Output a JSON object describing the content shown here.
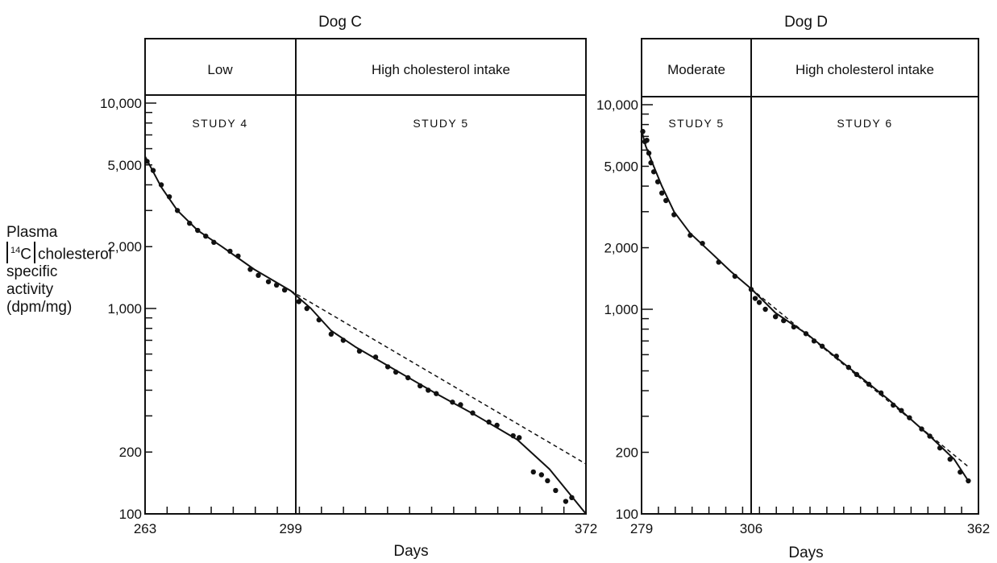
{
  "y_axis_label": {
    "line1": "Plasma",
    "iso_mass": "14",
    "iso_elem": "C",
    "line2_rest": "cholesterol",
    "line3": "specific",
    "line4": "activity",
    "line5": "(dpm/mg)"
  },
  "chart_data": [
    {
      "type": "scatter",
      "title": "Dog C",
      "xlabel": "Days",
      "ylabel": "Plasma [14C] cholesterol specific activity (dpm/mg)",
      "yscale": "log",
      "ylim": [
        100,
        20000
      ],
      "xlim": [
        263,
        372
      ],
      "x_tick_labels": [
        "263",
        "299",
        "372"
      ],
      "y_tick_labels": [
        "100",
        "200",
        "1,000",
        "2,000",
        "5,000",
        "10,000"
      ],
      "y_tick_values": [
        100,
        200,
        1000,
        2000,
        5000,
        10000
      ],
      "x_tick_values": [
        263,
        299,
        372
      ],
      "periods": [
        {
          "label": "Low",
          "study": "STUDY 4",
          "from": 263,
          "to": 299
        },
        {
          "label": "High cholesterol intake",
          "study": "STUDY 5",
          "from": 299,
          "to": 372
        }
      ],
      "points": [
        [
          263.5,
          5200
        ],
        [
          265,
          4700
        ],
        [
          267,
          4000
        ],
        [
          269,
          3500
        ],
        [
          271,
          3000
        ],
        [
          274,
          2600
        ],
        [
          276,
          2400
        ],
        [
          278,
          2250
        ],
        [
          280,
          2100
        ],
        [
          284,
          1900
        ],
        [
          286,
          1800
        ],
        [
          289,
          1550
        ],
        [
          291,
          1450
        ],
        [
          293.5,
          1350
        ],
        [
          295.5,
          1300
        ],
        [
          297.5,
          1230
        ],
        [
          301,
          1080
        ],
        [
          303,
          1000
        ],
        [
          306,
          880
        ],
        [
          309,
          750
        ],
        [
          312,
          700
        ],
        [
          316,
          620
        ],
        [
          320,
          580
        ],
        [
          323,
          520
        ],
        [
          325,
          490
        ],
        [
          328,
          460
        ],
        [
          331,
          420
        ],
        [
          333,
          400
        ],
        [
          335,
          385
        ],
        [
          339,
          350
        ],
        [
          341,
          340
        ],
        [
          344,
          310
        ],
        [
          348,
          280
        ],
        [
          350,
          270
        ],
        [
          354,
          240
        ],
        [
          355.5,
          235
        ],
        [
          359,
          160
        ],
        [
          361,
          155
        ],
        [
          362.5,
          145
        ],
        [
          364.5,
          130
        ],
        [
          367,
          115
        ],
        [
          368.5,
          120
        ]
      ],
      "fitted_curve": [
        [
          263,
          5500
        ],
        [
          267,
          3900
        ],
        [
          271,
          3000
        ],
        [
          276,
          2400
        ],
        [
          282,
          2000
        ],
        [
          290,
          1550
        ],
        [
          299,
          1220
        ],
        [
          304,
          1000
        ],
        [
          309,
          780
        ],
        [
          315,
          650
        ],
        [
          325,
          500
        ],
        [
          335,
          385
        ],
        [
          345,
          300
        ],
        [
          355,
          230
        ],
        [
          363,
          165
        ],
        [
          372,
          100
        ]
      ],
      "extrapolation": [
        [
          299,
          1220
        ],
        [
          372,
          175
        ]
      ]
    },
    {
      "type": "scatter",
      "title": "Dog D",
      "xlabel": "Days",
      "ylabel": "",
      "yscale": "log",
      "ylim": [
        100,
        20000
      ],
      "xlim": [
        279,
        362
      ],
      "x_tick_labels": [
        "279",
        "306",
        "362"
      ],
      "y_tick_labels": [
        "100",
        "200",
        "1,000",
        "2,000",
        "5,000",
        "10,000"
      ],
      "y_tick_values": [
        100,
        200,
        1000,
        2000,
        5000,
        10000
      ],
      "x_tick_values": [
        279,
        306,
        362
      ],
      "periods": [
        {
          "label": "Moderate",
          "study": "STUDY 5",
          "from": 279,
          "to": 306
        },
        {
          "label": "High cholesterol intake",
          "study": "STUDY 6",
          "from": 306,
          "to": 362
        }
      ],
      "points": [
        [
          279.3,
          7400
        ],
        [
          279.8,
          6600
        ],
        [
          280.3,
          6700
        ],
        [
          280.8,
          5800
        ],
        [
          281.3,
          5200
        ],
        [
          282,
          4700
        ],
        [
          283,
          4200
        ],
        [
          284,
          3700
        ],
        [
          285,
          3400
        ],
        [
          287,
          2900
        ],
        [
          291,
          2300
        ],
        [
          294,
          2100
        ],
        [
          298,
          1700
        ],
        [
          302,
          1450
        ],
        [
          306,
          1250
        ],
        [
          307,
          1130
        ],
        [
          308,
          1080
        ],
        [
          309.5,
          1000
        ],
        [
          312,
          920
        ],
        [
          314,
          880
        ],
        [
          316.5,
          820
        ],
        [
          319.5,
          760
        ],
        [
          321.5,
          700
        ],
        [
          323.5,
          660
        ],
        [
          327,
          590
        ],
        [
          330,
          520
        ],
        [
          332,
          480
        ],
        [
          335,
          430
        ],
        [
          338,
          390
        ],
        [
          341,
          340
        ],
        [
          343,
          320
        ],
        [
          345,
          295
        ],
        [
          348,
          260
        ],
        [
          350,
          240
        ],
        [
          352.5,
          210
        ],
        [
          355,
          185
        ],
        [
          357.5,
          160
        ],
        [
          359.5,
          145
        ]
      ],
      "fitted_curve": [
        [
          279,
          7500
        ],
        [
          280,
          6300
        ],
        [
          282,
          5000
        ],
        [
          284,
          4000
        ],
        [
          287,
          3000
        ],
        [
          291,
          2350
        ],
        [
          296,
          1900
        ],
        [
          301,
          1530
        ],
        [
          306,
          1260
        ],
        [
          312,
          960
        ],
        [
          320,
          750
        ],
        [
          330,
          520
        ],
        [
          340,
          360
        ],
        [
          350,
          240
        ],
        [
          356,
          185
        ],
        [
          359.5,
          145
        ]
      ],
      "extrapolation": [
        [
          306,
          1260
        ],
        [
          359.5,
          170
        ]
      ]
    }
  ]
}
